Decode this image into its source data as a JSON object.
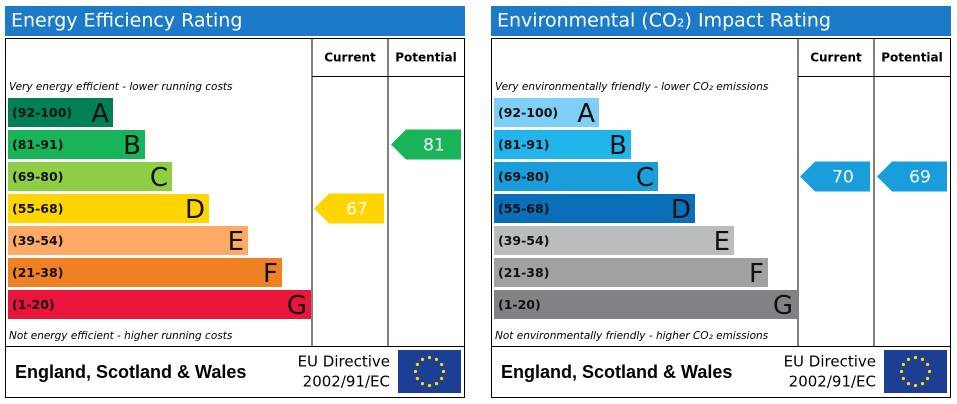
{
  "panels": [
    {
      "title": "Energy Efficiency Rating",
      "columns": [
        "Current",
        "Potential"
      ],
      "top_note": "Very energy efficient - lower running costs",
      "bottom_note": "Not energy efficient - higher running costs",
      "bands": [
        {
          "range": "(92-100)",
          "letter": "A",
          "color": "#008054"
        },
        {
          "range": "(81-91)",
          "letter": "B",
          "color": "#19b459"
        },
        {
          "range": "(69-80)",
          "letter": "C",
          "color": "#8dce46"
        },
        {
          "range": "(55-68)",
          "letter": "D",
          "color": "#ffd500"
        },
        {
          "range": "(39-54)",
          "letter": "E",
          "color": "#fcaa65"
        },
        {
          "range": "(21-38)",
          "letter": "F",
          "color": "#ef8023"
        },
        {
          "range": "(1-20)",
          "letter": "G",
          "color": "#e9153b"
        }
      ],
      "current": {
        "value": 67
      },
      "potential": {
        "value": 81
      },
      "footer": {
        "region": "England, Scotland & Wales",
        "directive": "EU Directive",
        "directive_code": "2002/91/EC"
      }
    },
    {
      "title": "Environmental (CO₂) Impact Rating",
      "columns": [
        "Current",
        "Potential"
      ],
      "top_note": "Very environmentally friendly - lower CO₂ emissions",
      "bottom_note": "Not environmentally friendly - higher CO₂ emissions",
      "bands": [
        {
          "range": "(92-100)",
          "letter": "A",
          "color": "#7dcff5"
        },
        {
          "range": "(81-91)",
          "letter": "B",
          "color": "#22b5ec"
        },
        {
          "range": "(69-80)",
          "letter": "C",
          "color": "#1a9edb"
        },
        {
          "range": "(55-68)",
          "letter": "D",
          "color": "#0a6eb8"
        },
        {
          "range": "(39-54)",
          "letter": "E",
          "color": "#bbbcbe"
        },
        {
          "range": "(21-38)",
          "letter": "F",
          "color": "#a0a1a3"
        },
        {
          "range": "(1-20)",
          "letter": "G",
          "color": "#808285"
        }
      ],
      "current": {
        "value": 70
      },
      "potential": {
        "value": 69
      },
      "footer": {
        "region": "England, Scotland & Wales",
        "directive": "EU Directive",
        "directive_code": "2002/91/EC"
      }
    }
  ]
}
